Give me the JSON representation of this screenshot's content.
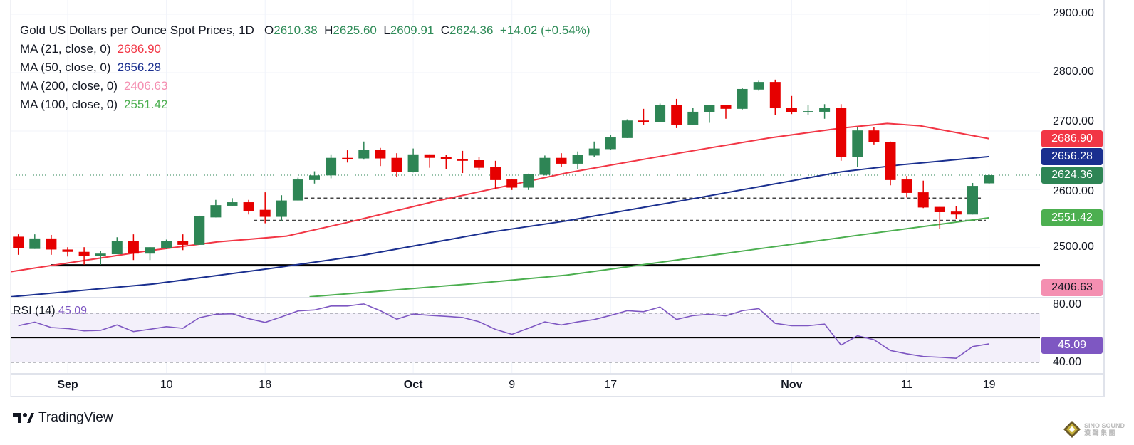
{
  "header": {
    "symbol_title": "Gold US Dollars per Ounce Spot Prices, 1D",
    "open_label": "O",
    "open": "2610.38",
    "high_label": "H",
    "high": "2625.60",
    "low_label": "L",
    "low": "2609.91",
    "close_label": "C",
    "close": "2624.36",
    "change": "+14.02 (+0.54%)"
  },
  "indicators": [
    {
      "label": "MA (21, close, 0)",
      "value": "2686.90",
      "color": "#f23645"
    },
    {
      "label": "MA (50, close, 0)",
      "value": "2656.28",
      "color": "#1a2f8f"
    },
    {
      "label": "MA (200, close, 0)",
      "value": "2406.63",
      "color": "#f48fb1"
    },
    {
      "label": "MA (100, close, 0)",
      "value": "2551.42",
      "color": "#4caf50"
    }
  ],
  "rsi": {
    "label": "RSI (14)",
    "value": "45.09",
    "color": "#7e57c2"
  },
  "price_axis": {
    "ticks": [
      "2900.00",
      "2800.00",
      "2700.00",
      "2600.00",
      "2500.00"
    ],
    "rsi_ticks": [
      "80.00",
      "40.00"
    ]
  },
  "badges": [
    {
      "name": "ma21-badge",
      "text": "2686.90",
      "color": "#f23645"
    },
    {
      "name": "ma50-badge",
      "text": "2656.28",
      "color": "#1a2f8f"
    },
    {
      "name": "last-price-badge",
      "text": "2624.36",
      "color": "#2e8555"
    },
    {
      "name": "ma100-badge",
      "text": "2551.42",
      "color": "#4caf50"
    },
    {
      "name": "ma200-badge",
      "text": "2406.63",
      "color": "#f48fb1"
    },
    {
      "name": "rsi-badge",
      "text": "45.09",
      "color": "#7e57c2"
    }
  ],
  "footer": {
    "brand": "TradingView",
    "watermark_line1": "SINO SOUND",
    "watermark_line2": "漢 聲 集 團"
  },
  "chart_data": {
    "type": "candlestick",
    "title": "Gold US Dollars per Ounce Spot Prices, 1D",
    "ylim": [
      2415,
      2925
    ],
    "x_ticks": [
      {
        "index": 3,
        "label": "Sep",
        "bold": true
      },
      {
        "index": 9,
        "label": "10",
        "bold": false
      },
      {
        "index": 15,
        "label": "18",
        "bold": false
      },
      {
        "index": 24,
        "label": "Oct",
        "bold": true
      },
      {
        "index": 30,
        "label": "9",
        "bold": false
      },
      {
        "index": 36,
        "label": "17",
        "bold": false
      },
      {
        "index": 47,
        "label": "Nov",
        "bold": true
      },
      {
        "index": 54,
        "label": "11",
        "bold": false
      },
      {
        "index": 59,
        "label": "19",
        "bold": false
      }
    ],
    "y_ticks": [
      2500,
      2600,
      2700,
      2800,
      2900
    ],
    "grid": true,
    "candles_ohlc": [
      [
        2519,
        2523,
        2488,
        2499
      ],
      [
        2498,
        2523,
        2498,
        2516
      ],
      [
        2516,
        2522,
        2488,
        2497
      ],
      [
        2497,
        2501,
        2485,
        2493
      ],
      [
        2493,
        2501,
        2471,
        2486
      ],
      [
        2486,
        2495,
        2471,
        2490
      ],
      [
        2489,
        2518,
        2489,
        2511
      ],
      [
        2511,
        2523,
        2479,
        2490
      ],
      [
        2490,
        2501,
        2479,
        2501
      ],
      [
        2500,
        2514,
        2498,
        2511
      ],
      [
        2511,
        2523,
        2496,
        2505
      ],
      [
        2505,
        2555,
        2505,
        2554
      ],
      [
        2552,
        2582,
        2552,
        2573
      ],
      [
        2572,
        2585,
        2571,
        2578
      ],
      [
        2578,
        2582,
        2557,
        2563
      ],
      [
        2565,
        2595,
        2542,
        2553
      ],
      [
        2553,
        2590,
        2546,
        2581
      ],
      [
        2581,
        2620,
        2581,
        2617
      ],
      [
        2616,
        2631,
        2610,
        2624
      ],
      [
        2624,
        2660,
        2619,
        2654
      ],
      [
        2654,
        2667,
        2646,
        2652
      ],
      [
        2653,
        2682,
        2651,
        2668
      ],
      [
        2668,
        2671,
        2640,
        2653
      ],
      [
        2654,
        2662,
        2621,
        2630
      ],
      [
        2630,
        2670,
        2629,
        2660
      ],
      [
        2660,
        2660,
        2637,
        2654
      ],
      [
        2655,
        2659,
        2635,
        2652
      ],
      [
        2652,
        2666,
        2628,
        2649
      ],
      [
        2650,
        2656,
        2633,
        2637
      ],
      [
        2638,
        2649,
        2600,
        2616
      ],
      [
        2617,
        2618,
        2599,
        2603
      ],
      [
        2603,
        2627,
        2599,
        2626
      ],
      [
        2625,
        2658,
        2624,
        2654
      ],
      [
        2654,
        2662,
        2639,
        2644
      ],
      [
        2644,
        2665,
        2635,
        2659
      ],
      [
        2658,
        2682,
        2655,
        2670
      ],
      [
        2669,
        2693,
        2668,
        2689
      ],
      [
        2688,
        2720,
        2688,
        2718
      ],
      [
        2718,
        2738,
        2711,
        2715
      ],
      [
        2715,
        2747,
        2715,
        2745
      ],
      [
        2745,
        2755,
        2705,
        2711
      ],
      [
        2711,
        2740,
        2711,
        2733
      ],
      [
        2732,
        2745,
        2714,
        2744
      ],
      [
        2744,
        2744,
        2721,
        2738
      ],
      [
        2738,
        2773,
        2737,
        2772
      ],
      [
        2771,
        2786,
        2769,
        2784
      ],
      [
        2784,
        2788,
        2728,
        2739
      ],
      [
        2740,
        2760,
        2729,
        2732
      ],
      [
        2734,
        2745,
        2727,
        2734
      ],
      [
        2733,
        2746,
        2721,
        2740
      ],
      [
        2740,
        2746,
        2649,
        2655
      ],
      [
        2655,
        2707,
        2639,
        2701
      ],
      [
        2701,
        2707,
        2677,
        2681
      ],
      [
        2681,
        2682,
        2607,
        2616
      ],
      [
        2617,
        2623,
        2586,
        2594
      ],
      [
        2595,
        2615,
        2568,
        2569
      ],
      [
        2570,
        2570,
        2532,
        2561
      ],
      [
        2562,
        2571,
        2549,
        2557
      ],
      [
        2557,
        2611,
        2557,
        2606
      ],
      [
        2610.38,
        2625.6,
        2609.91,
        2624.36
      ]
    ],
    "moving_averages": [
      {
        "name": "MA (21, close, 0)",
        "color": "#f23645",
        "points": [
          [
            -0.5,
            2459
          ],
          [
            7.7,
            2494
          ],
          [
            12.1,
            2510
          ],
          [
            16.3,
            2520
          ],
          [
            20.1,
            2544
          ],
          [
            25.4,
            2580
          ],
          [
            33.3,
            2628
          ],
          [
            39.7,
            2660
          ],
          [
            45.6,
            2688
          ],
          [
            50,
            2705
          ],
          [
            52.8,
            2713
          ],
          [
            54.8,
            2709
          ],
          [
            59,
            2686.9
          ]
        ]
      },
      {
        "name": "MA (50, close, 0)",
        "color": "#1a2f8f",
        "points": [
          [
            -0.5,
            2416
          ],
          [
            8.2,
            2438
          ],
          [
            15.7,
            2466
          ],
          [
            20.9,
            2487
          ],
          [
            28.5,
            2526
          ],
          [
            33.3,
            2546
          ],
          [
            40.8,
            2583
          ],
          [
            50,
            2630
          ],
          [
            53.6,
            2642
          ],
          [
            59,
            2656.28
          ]
        ]
      },
      {
        "name": "MA (100, close, 0)",
        "color": "#4caf50",
        "points": [
          [
            17.7,
            2416
          ],
          [
            27.4,
            2438
          ],
          [
            33.3,
            2453
          ],
          [
            45.2,
            2499
          ],
          [
            51.7,
            2524
          ],
          [
            59,
            2551.42
          ]
        ]
      }
    ],
    "horizontal_lines": [
      {
        "price": 2470,
        "style": "solid",
        "from_index": 2,
        "color": "#000000"
      },
      {
        "price": 2585,
        "style": "dashed",
        "from_index": 17,
        "to_index": 58.5,
        "color": "#444444"
      },
      {
        "price": 2547,
        "style": "dashed",
        "from_index": 14.3,
        "to_index": 58.8,
        "color": "#444444"
      }
    ],
    "last_price_line": 2624.36,
    "rsi": {
      "ylim": [
        20,
        85
      ],
      "bands": [
        70,
        50,
        30
      ],
      "values": [
        59.9,
        62.8,
        58.4,
        57.6,
        55.7,
        56.1,
        60.5,
        55.1,
        57.0,
        59.1,
        57.8,
        66.4,
        69.2,
        69.6,
        65.6,
        62.6,
        67.1,
        71.9,
        72.7,
        75.9,
        75.9,
        77.6,
        72.1,
        65.2,
        69.4,
        68.3,
        67.5,
        66.6,
        63.1,
        56.9,
        52.9,
        57.8,
        63.0,
        60.5,
        63.0,
        64.9,
        68.3,
        72.1,
        71.3,
        75.1,
        65.0,
        68.1,
        69.2,
        67.9,
        72.1,
        73.8,
        61.8,
        59.9,
        59.9,
        61.2,
        44.1,
        51.7,
        48.5,
        39.7,
        37.0,
        34.8,
        34.2,
        33.4,
        42.9,
        45.09
      ]
    }
  }
}
